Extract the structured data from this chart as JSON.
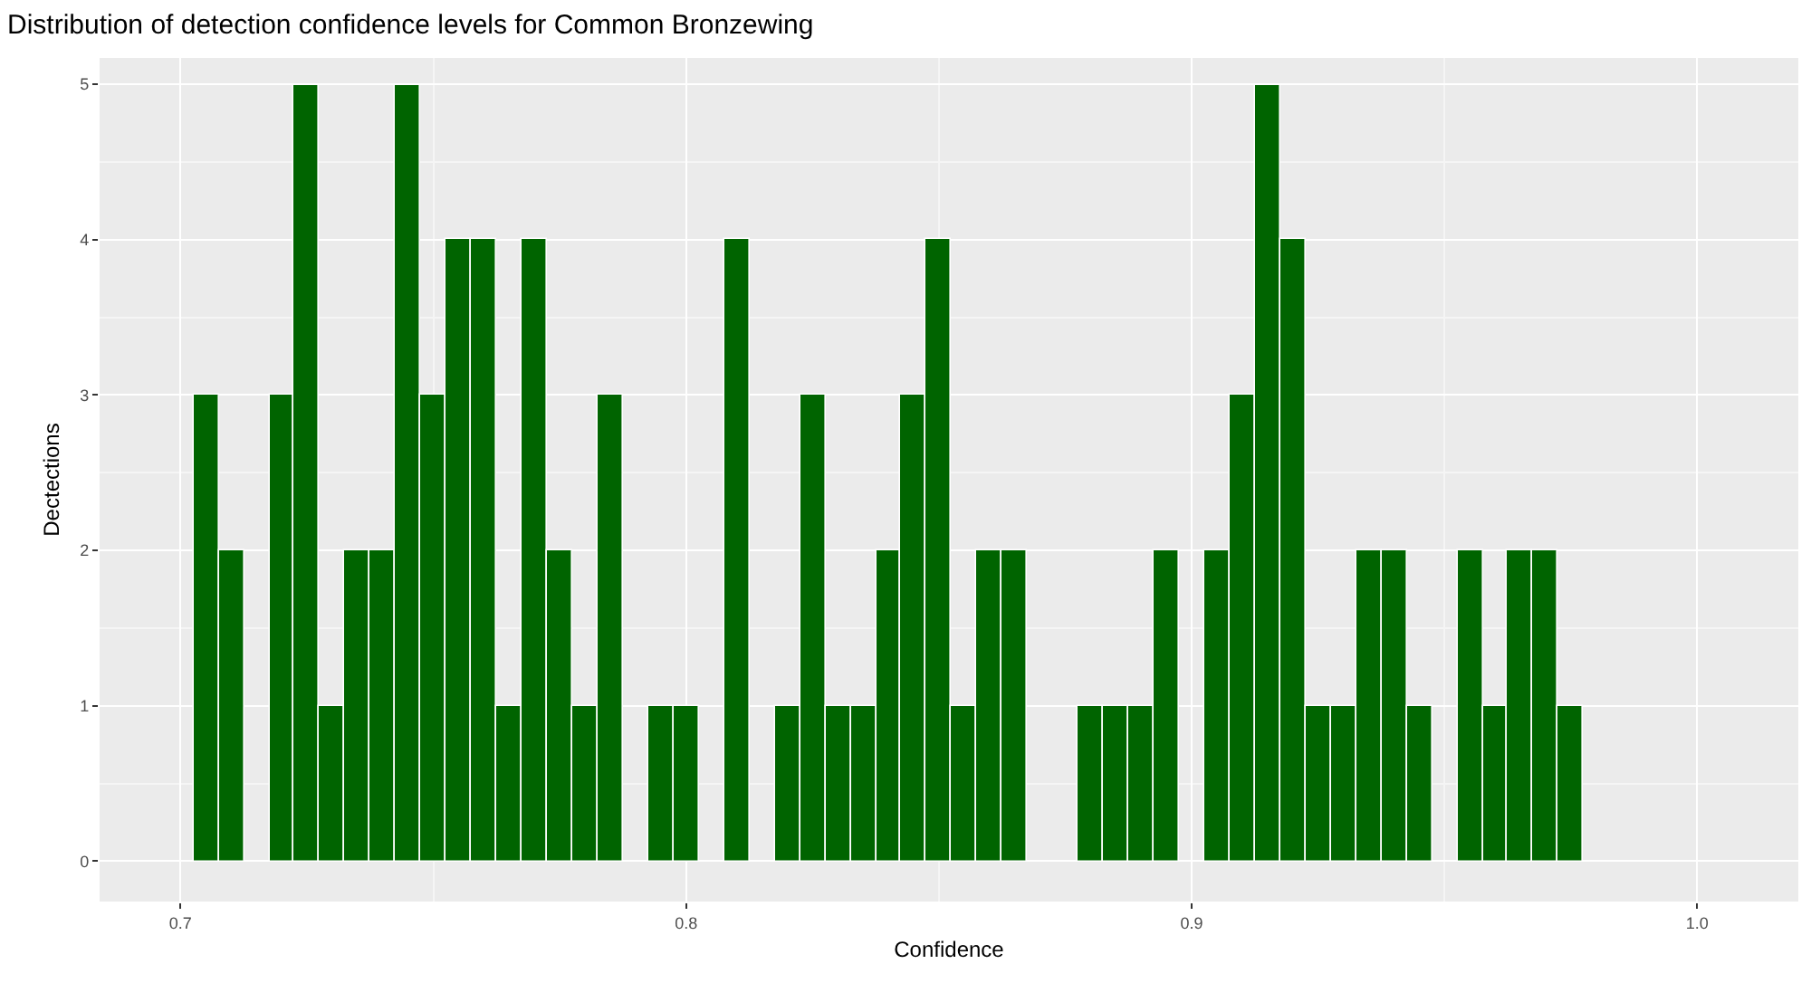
{
  "chart_data": {
    "type": "histogram",
    "title": "Distribution of detection confidence levels for Common Bronzewing",
    "xlabel": "Confidence",
    "ylabel": "Dectections",
    "bins": [
      0.7025,
      0.7075,
      0.7125,
      0.7175,
      0.7225,
      0.7275,
      0.7325,
      0.7375,
      0.7425,
      0.7475,
      0.7525,
      0.7575,
      0.7625,
      0.7675,
      0.7725,
      0.7775,
      0.7825,
      0.7875,
      0.7925,
      0.7975,
      0.8025,
      0.8075,
      0.8125,
      0.8175,
      0.8225,
      0.8275,
      0.8325,
      0.8375,
      0.8425,
      0.8475,
      0.8525,
      0.8575,
      0.8625,
      0.8675,
      0.8725,
      0.8775,
      0.8825,
      0.8875,
      0.8925,
      0.8975,
      0.9025,
      0.9075,
      0.9125,
      0.9175,
      0.9225,
      0.9275,
      0.9325,
      0.9375,
      0.9425,
      0.9475,
      0.9525,
      0.9575,
      0.9625,
      0.9675,
      0.9725,
      0.9775
    ],
    "values": [
      3,
      2,
      0,
      3,
      5,
      1,
      2,
      2,
      5,
      3,
      4,
      4,
      1,
      4,
      2,
      1,
      3,
      0,
      1,
      1,
      0,
      4,
      0,
      1,
      3,
      1,
      1,
      2,
      3,
      4,
      1,
      2,
      2,
      0,
      0,
      1,
      1,
      1,
      2,
      0,
      2,
      3,
      5,
      4,
      1,
      1,
      2,
      2,
      1,
      0,
      2,
      1,
      2,
      2,
      1
    ],
    "color": "#006400",
    "xlim": [
      0.684,
      1.02
    ],
    "xticks": [
      {
        "value": 0.7,
        "label": "0.7"
      },
      {
        "value": 0.8,
        "label": "0.8"
      },
      {
        "value": 0.9,
        "label": "0.9"
      },
      {
        "value": 1.0,
        "label": "1.0"
      }
    ],
    "ylim": [
      -0.26,
      5.17
    ],
    "yticks": [
      0,
      1,
      2,
      3,
      4,
      5
    ],
    "grid": true
  }
}
